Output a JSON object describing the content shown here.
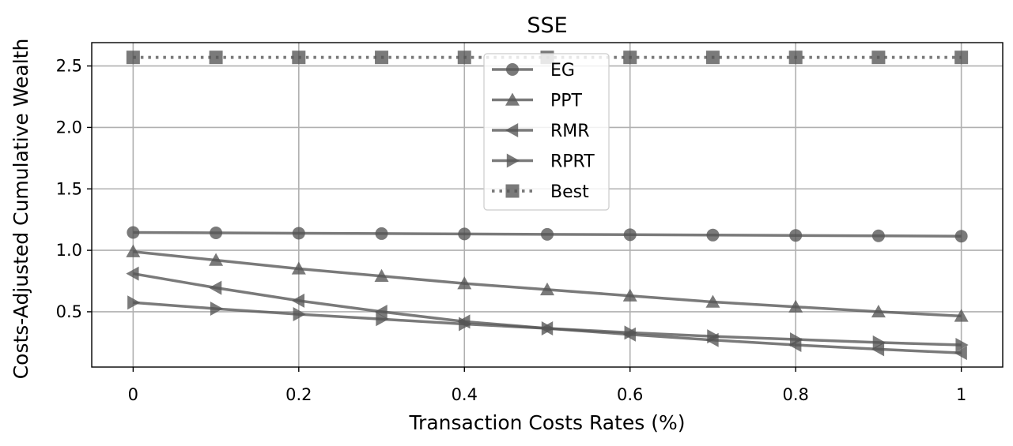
{
  "chart_data": {
    "type": "line",
    "title": "SSE",
    "xlabel": "Transaction Costs Rates (%)",
    "ylabel": "Costs-Adjusted Cumulative Wealth",
    "x": [
      0,
      0.1,
      0.2,
      0.3,
      0.4,
      0.5,
      0.6,
      0.7,
      0.8,
      0.9,
      1.0
    ],
    "xticks": [
      0,
      0.2,
      0.4,
      0.6,
      0.8,
      1.0
    ],
    "xtick_labels": [
      "0",
      "0.2",
      "0.4",
      "0.6",
      "0.8",
      "1"
    ],
    "yticks": [
      0.5,
      1.0,
      1.5,
      2.0,
      2.5
    ],
    "ytick_labels": [
      "0.5",
      "1.0",
      "1.5",
      "2.0",
      "2.5"
    ],
    "xlim": [
      -0.05,
      1.05
    ],
    "ylim": [
      0.05,
      2.69
    ],
    "grid": true,
    "legend_position": "top-center",
    "series_color": "#555555",
    "series": [
      {
        "name": "EG",
        "marker": "circle",
        "line": "solid",
        "values": [
          1.145,
          1.142,
          1.139,
          1.136,
          1.133,
          1.13,
          1.127,
          1.124,
          1.121,
          1.118,
          1.115
        ]
      },
      {
        "name": "PPT",
        "marker": "triangle-up",
        "line": "solid",
        "values": [
          0.99,
          0.92,
          0.85,
          0.79,
          0.73,
          0.68,
          0.63,
          0.58,
          0.54,
          0.5,
          0.465
        ]
      },
      {
        "name": "RMR",
        "marker": "triangle-left",
        "line": "solid",
        "values": [
          0.81,
          0.695,
          0.59,
          0.5,
          0.42,
          0.365,
          0.315,
          0.27,
          0.23,
          0.195,
          0.165
        ]
      },
      {
        "name": "RPRT",
        "marker": "triangle-right",
        "line": "solid",
        "values": [
          0.575,
          0.525,
          0.48,
          0.44,
          0.4,
          0.365,
          0.33,
          0.3,
          0.275,
          0.25,
          0.23
        ]
      },
      {
        "name": "Best",
        "marker": "square",
        "line": "dotted",
        "values": [
          2.57,
          2.57,
          2.57,
          2.57,
          2.57,
          2.57,
          2.57,
          2.57,
          2.57,
          2.57,
          2.57
        ]
      }
    ]
  }
}
